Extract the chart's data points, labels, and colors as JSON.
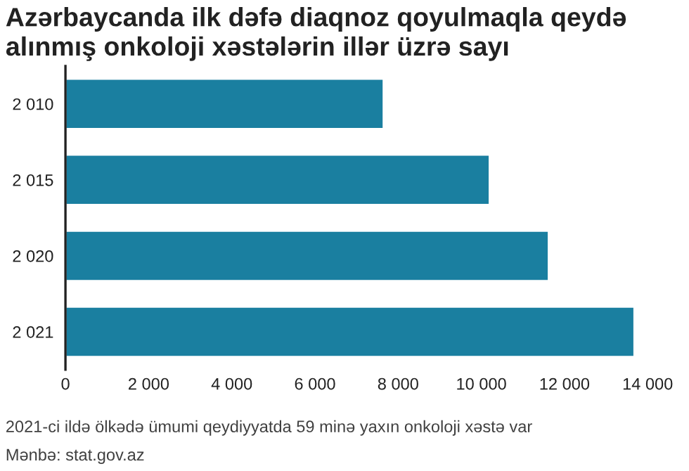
{
  "chart_data": {
    "type": "bar",
    "orientation": "horizontal",
    "title": "Azərbaycanda ilk dəfə diaqnoz qoyulmaqla qeydə\nalınmış onkoloji xəstələrin illər üzrə sayı",
    "categories": [
      "2 010",
      "2 015",
      "2 020",
      "2 021"
    ],
    "values": [
      7650,
      10200,
      11620,
      13680
    ],
    "color": "#1a7fa0",
    "xlim": [
      0,
      14000
    ],
    "xticks": [
      0,
      {
        "value": 2000,
        "label": "2 000"
      },
      {
        "value": 4000,
        "label": "4 000"
      },
      {
        "value": 6000,
        "label": "6 000"
      },
      {
        "value": 8000,
        "label": "8 000"
      },
      {
        "value": 10000,
        "label": "10 000"
      },
      {
        "value": 12000,
        "label": "12 000"
      },
      {
        "value": 14000,
        "label": "14 000"
      }
    ],
    "grid": false,
    "annotations": [
      "2021-ci ildə ölkədə ümumi qeydiyyatda 59 minə yaxın onkoloji xəstə var",
      "Mənbə: stat.gov.az"
    ]
  }
}
